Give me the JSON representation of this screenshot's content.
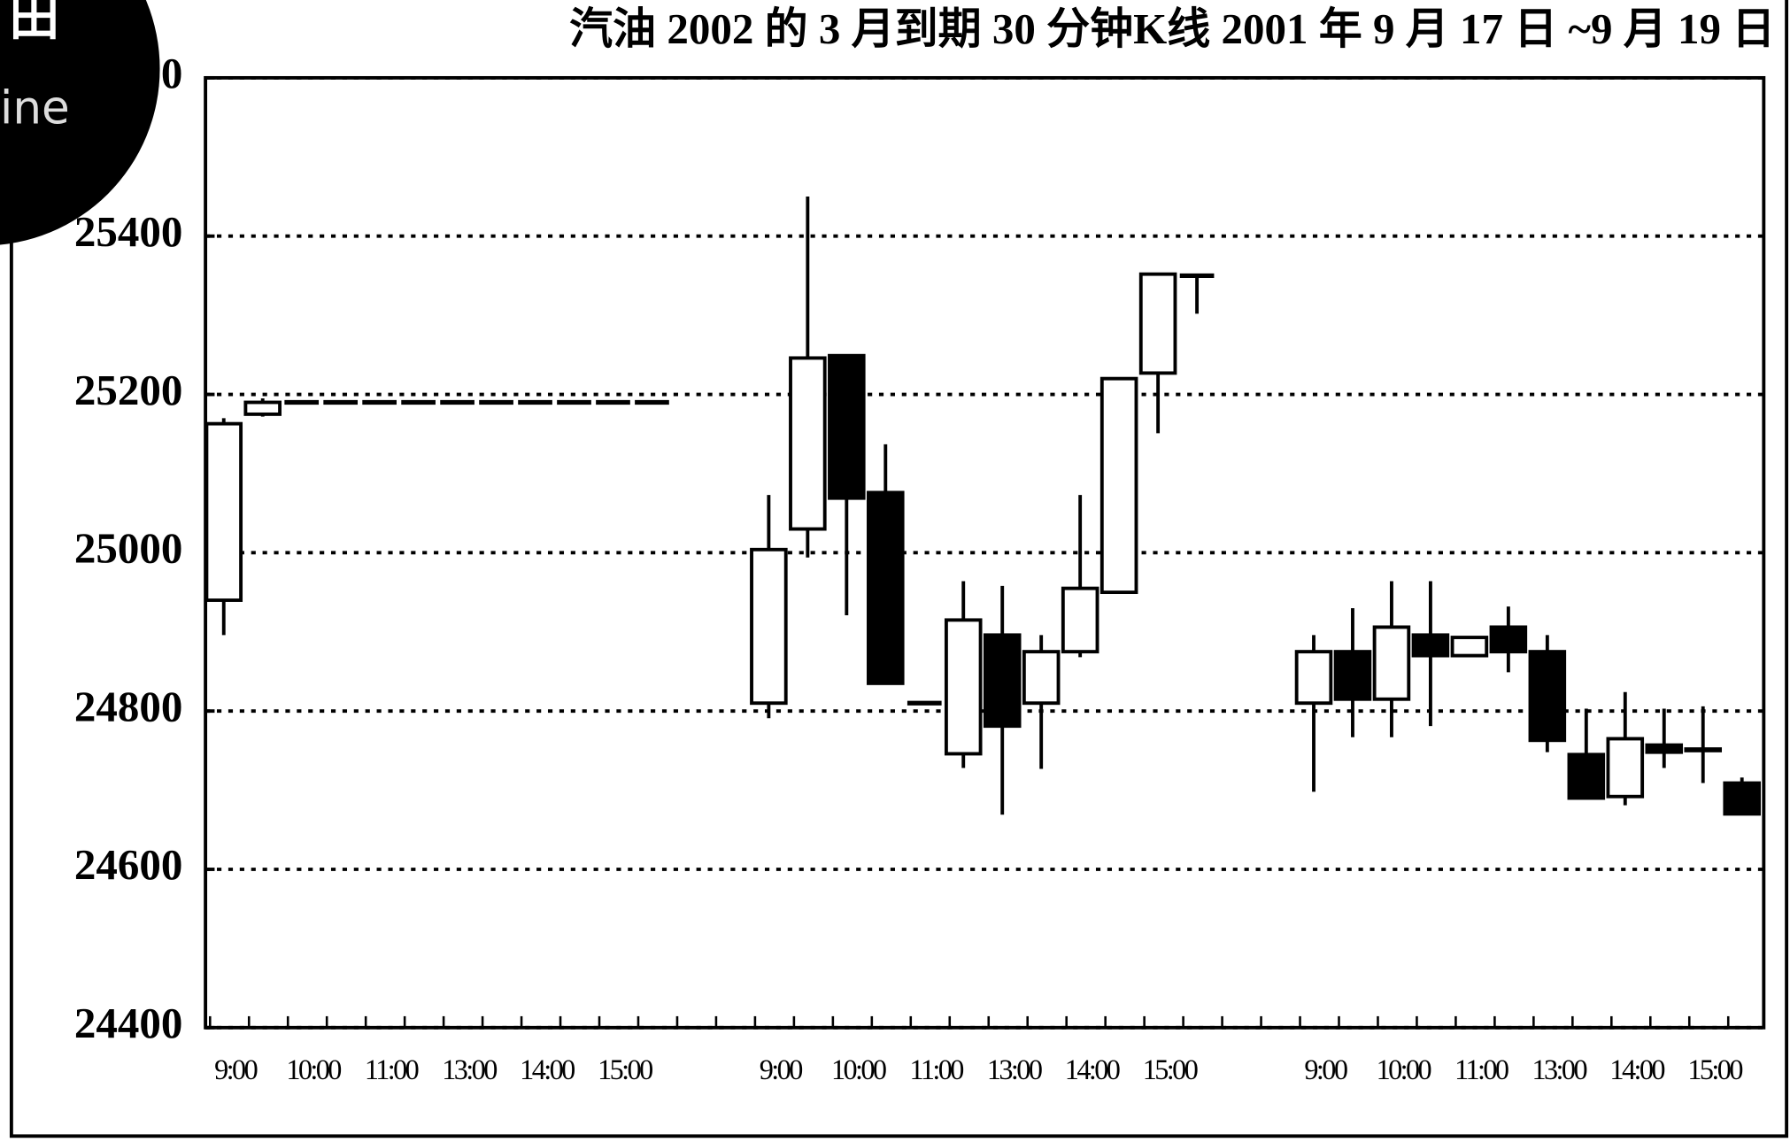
{
  "corner_labels": [
    "田",
    "ine"
  ],
  "chart_data": {
    "type": "candlestick",
    "title": "汽油 2002 的 3 月到期 30 分钟K线 2001 年 9 月 17 日 ~9 月 19 日",
    "categories": [
      "9:00",
      null,
      "10:00",
      null,
      "11:00",
      null,
      "13:00",
      null,
      "14:00",
      null,
      "15:00",
      null,
      null,
      null,
      "9:00",
      null,
      "10:00",
      null,
      "11:00",
      null,
      "13:00",
      null,
      "14:00",
      null,
      "15:00",
      null,
      null,
      null,
      "9:00",
      null,
      "10:00",
      null,
      "11:00",
      null,
      "13:00",
      null,
      "14:00",
      null,
      "15:00",
      null
    ],
    "open": [
      24940,
      25175,
      25190,
      25190,
      25190,
      25190,
      25190,
      25190,
      25190,
      25190,
      25190,
      25190,
      null,
      null,
      24810,
      25030,
      25249,
      25076,
      24810,
      24746,
      24896,
      24810,
      24875,
      24950,
      25227,
      25350,
      null,
      null,
      24810,
      24875,
      24815,
      24896,
      24870,
      24906,
      24875,
      24745,
      24692,
      24757,
      24752,
      24709
    ],
    "high": [
      25170,
      25195,
      25190,
      25190,
      25190,
      25190,
      25190,
      25190,
      25190,
      25190,
      25190,
      25190,
      null,
      null,
      25073,
      25450,
      25249,
      25137,
      24810,
      24964,
      24958,
      24896,
      25073,
      25220,
      25352,
      25352,
      null,
      null,
      24896,
      24930,
      24964,
      24964,
      24893,
      24932,
      24896,
      24803,
      24824,
      24803,
      24806,
      24716
    ],
    "low": [
      24896,
      25172,
      25190,
      25190,
      25190,
      25190,
      25190,
      25190,
      25190,
      25190,
      25190,
      25190,
      null,
      null,
      24791,
      24994,
      24921,
      24835,
      24810,
      24728,
      24669,
      24727,
      24868,
      24950,
      25151,
      25302,
      null,
      null,
      24698,
      24767,
      24767,
      24781,
      24870,
      24849,
      24748,
      24690,
      24681,
      24728,
      24709,
      24670
    ],
    "close": [
      25163,
      25190,
      25190,
      25190,
      25190,
      25190,
      25190,
      25190,
      25190,
      25190,
      25190,
      25190,
      null,
      null,
      25004,
      25246,
      25069,
      24835,
      24810,
      24915,
      24781,
      24875,
      24955,
      25220,
      25352,
      25350,
      null,
      null,
      24875,
      24815,
      24906,
      24870,
      24893,
      24875,
      24763,
      24690,
      24765,
      24748,
      24750,
      24670
    ],
    "up_color": "#ffffff",
    "down_color": "#000000",
    "ylim": [
      24400,
      25600
    ],
    "yticks": [
      24400,
      24600,
      24800,
      25000,
      25200,
      25400,
      25600
    ],
    "grid": true
  }
}
